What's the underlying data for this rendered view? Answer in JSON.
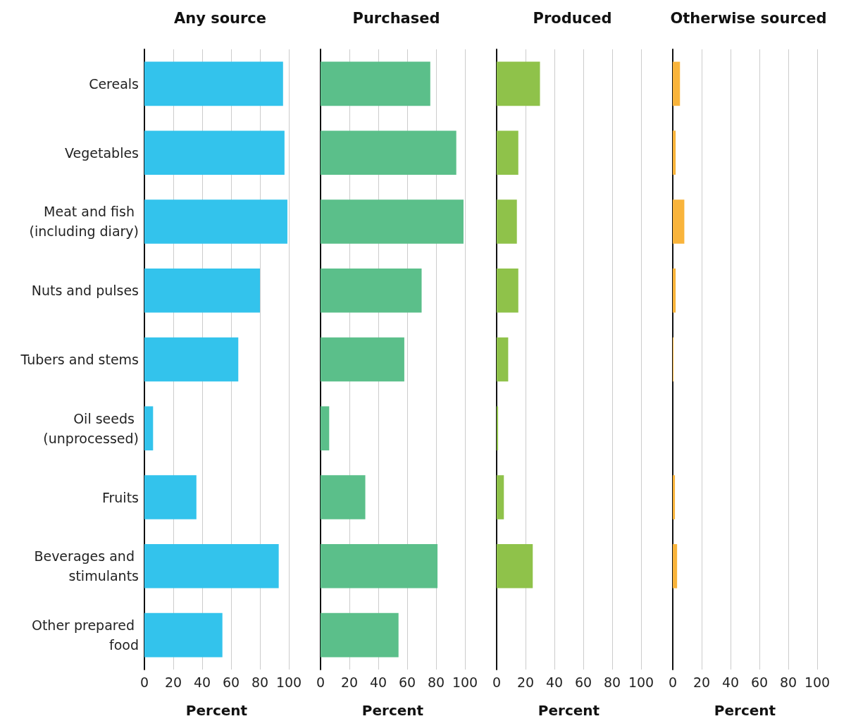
{
  "chart_data": [
    {
      "type": "bar",
      "orientation": "horizontal",
      "title": "Any source",
      "xlabel": "Percent",
      "categories": [
        "Cereals",
        "Vegetables",
        "Meat and fish (including diary)",
        "Nuts and pulses",
        "Tubers and stems",
        "Oil seeds (unprocessed)",
        "Fruits",
        "Beverages and stimulants",
        "Other prepared food"
      ],
      "values": [
        96,
        97,
        99,
        80,
        65,
        6,
        36,
        93,
        54
      ],
      "color": "#33c3ec",
      "xlim": [
        0,
        100
      ],
      "xticks": [
        0,
        20,
        40,
        60,
        80,
        100
      ],
      "grid": "x"
    },
    {
      "type": "bar",
      "orientation": "horizontal",
      "title": "Purchased",
      "xlabel": "Percent",
      "categories": [
        "Cereals",
        "Vegetables",
        "Meat and fish (including diary)",
        "Nuts and pulses",
        "Tubers and stems",
        "Oil seeds (unprocessed)",
        "Fruits",
        "Beverages and stimulants",
        "Other prepared food"
      ],
      "values": [
        76,
        94,
        99,
        70,
        58,
        6,
        31,
        81,
        54
      ],
      "color": "#5bbf8a",
      "xlim": [
        0,
        100
      ],
      "xticks": [
        0,
        20,
        40,
        60,
        80,
        100
      ],
      "grid": "x",
      "tick_labels": "x"
    },
    {
      "type": "bar",
      "orientation": "horizontal",
      "title": "Produced",
      "xlabel": "Percent",
      "categories": [
        "Cereals",
        "Vegetables",
        "Meat and fish (including diary)",
        "Nuts and pulses",
        "Tubers and stems",
        "Oil seeds (unprocessed)",
        "Fruits",
        "Beverages and stimulants",
        "Other prepared food"
      ],
      "values": [
        30,
        15,
        14,
        15,
        8,
        1,
        5,
        25,
        0
      ],
      "color": "#8fc24a",
      "xlim": [
        0,
        100
      ],
      "xticks": [
        0,
        20,
        40,
        60,
        80,
        100
      ],
      "grid": "x",
      "tick_labels": "x"
    },
    {
      "type": "bar",
      "orientation": "horizontal",
      "title": "Otherwise sourced",
      "xlabel": "Percent",
      "categories": [
        "Cereals",
        "Vegetables",
        "Meat and fish (including diary)",
        "Nuts and pulses",
        "Tubers and stems",
        "Oil seeds (unprocessed)",
        "Fruits",
        "Beverages and stimulants",
        "Other prepared food"
      ],
      "values": [
        5,
        2,
        8,
        2,
        0.5,
        0,
        1.5,
        3,
        0
      ],
      "color": "#f9b43b",
      "xlim": [
        0,
        100
      ],
      "xticks": [
        0,
        20,
        40,
        60,
        80,
        100
      ],
      "grid": "x",
      "tick_labels": "x"
    }
  ]
}
